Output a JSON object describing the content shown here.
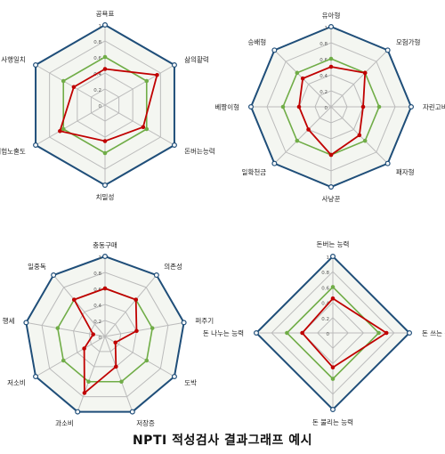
{
  "caption": "NPTI 적성검사 결과그래프 예시",
  "colors": {
    "outer": "#1f4e79",
    "grid": "#bbbbbb",
    "reference": "#70ad47",
    "result": "#c00000",
    "fill": "#f4f6f1"
  },
  "chart_data": [
    {
      "type": "radar",
      "categories": [
        "공욕표",
        "삶의활력",
        "돈버는능력",
        "치밀성",
        "위험노출도",
        "사행일치"
      ],
      "axis_range": [
        0,
        1
      ],
      "tick_labels": [
        "0",
        "0.2",
        "0.4",
        "0.6",
        "0.8",
        "1"
      ],
      "series": [
        {
          "values": [
            0.6,
            0.6,
            0.6,
            0.6,
            0.6,
            0.6
          ]
        },
        {
          "values": [
            0.45,
            0.75,
            0.55,
            0.45,
            0.65,
            0.45
          ]
        }
      ]
    },
    {
      "type": "radar",
      "categories": [
        "유아형",
        "모험가형",
        "자린고비",
        "패자형",
        "사냥꾼",
        "일확천금",
        "베짱이형",
        "승배형"
      ],
      "axis_range": [
        0,
        1
      ],
      "tick_labels": [
        "0",
        "0.2",
        "0.4",
        "0.6",
        "0.8",
        "1"
      ],
      "series": [
        {
          "values": [
            0.6,
            0.6,
            0.6,
            0.6,
            0.6,
            0.6,
            0.6,
            0.6
          ]
        },
        {
          "values": [
            0.5,
            0.6,
            0.4,
            0.5,
            0.6,
            0.4,
            0.4,
            0.5
          ]
        }
      ]
    },
    {
      "type": "radar",
      "categories": [
        "충동구매",
        "의존성",
        "퍼주기",
        "도박",
        "저장증",
        "과소비",
        "저소비",
        "가난의 행세",
        "일중독"
      ],
      "axis_range": [
        0,
        1
      ],
      "tick_labels": [
        "0",
        "0.2",
        "0.4",
        "0.6",
        "0.8",
        "1"
      ],
      "series": [
        {
          "values": [
            0.6,
            0.6,
            0.6,
            0.6,
            0.6,
            0.6,
            0.6,
            0.6,
            0.6
          ]
        },
        {
          "values": [
            0.6,
            0.6,
            0.4,
            0.15,
            0.4,
            0.75,
            0.3,
            0.15,
            0.6
          ]
        }
      ]
    },
    {
      "type": "radar",
      "categories": [
        "돈버는 능력",
        "돈 쓰는 능력",
        "돈 불리는 능력",
        "돈 나누는 능력"
      ],
      "axis_range": [
        0,
        1
      ],
      "tick_labels": [
        "0",
        "0.2",
        "0.4",
        "0.6",
        "0.8",
        "1"
      ],
      "series": [
        {
          "values": [
            0.6,
            0.6,
            0.6,
            0.6
          ]
        },
        {
          "values": [
            0.45,
            0.7,
            0.45,
            0.4
          ]
        }
      ]
    }
  ]
}
